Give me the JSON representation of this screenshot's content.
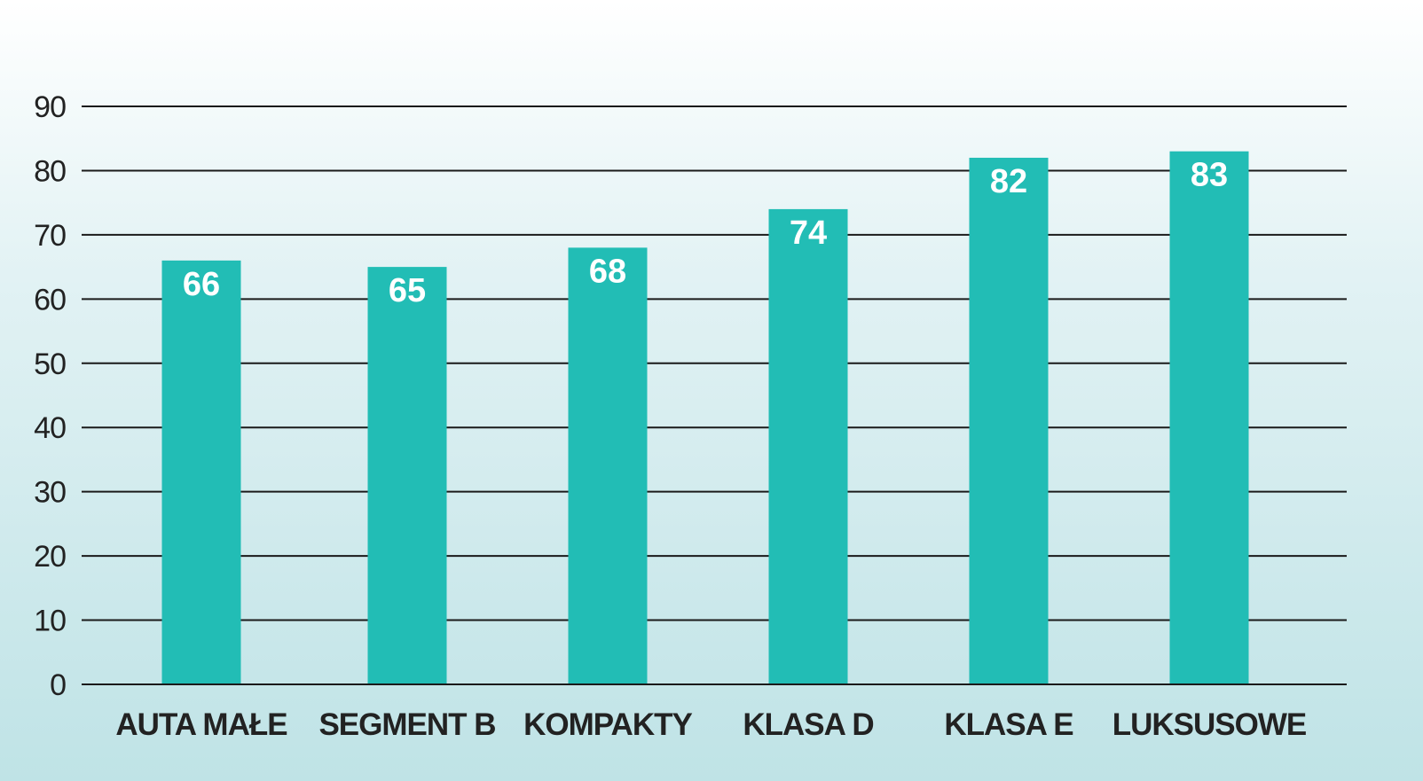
{
  "chart_data": {
    "type": "bar",
    "categories": [
      "AUTA MAŁE",
      "SEGMENT B",
      "KOMPAKTY",
      "KLASA D",
      "KLASA E",
      "LUKSUSOWE"
    ],
    "values": [
      66,
      65,
      68,
      74,
      82,
      83
    ],
    "title": "",
    "xlabel": "",
    "ylabel": "",
    "ylim": [
      0,
      90
    ],
    "yticks": [
      "0",
      "10",
      "20",
      "30",
      "40",
      "50",
      "60",
      "70",
      "80",
      "90"
    ],
    "data_labels": [
      "66",
      "65",
      "68",
      "74",
      "82",
      "83"
    ],
    "grid": true,
    "legend": "none",
    "colors": {
      "bar": "#22bdb5",
      "gridline": "#1a1a1a",
      "text": "#222222",
      "value_label": "#ffffff"
    }
  }
}
